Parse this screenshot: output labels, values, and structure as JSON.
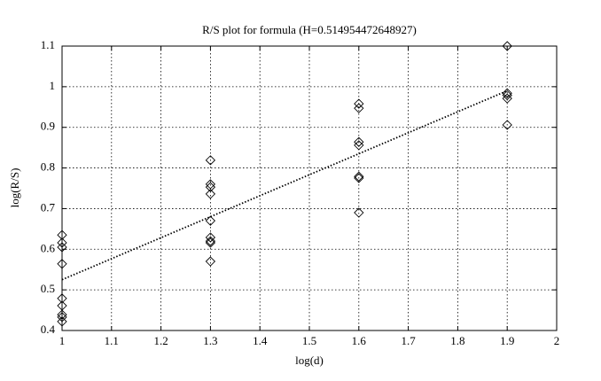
{
  "chart_data": {
    "type": "scatter",
    "title": "R/S plot for formula (H=0.514954472648927)",
    "xlabel": "log(d)",
    "ylabel": "log(R/S)",
    "xlim": [
      1,
      2
    ],
    "ylim": [
      0.4,
      1.1
    ],
    "xticks": [
      1,
      1.1,
      1.2,
      1.3,
      1.4,
      1.5,
      1.6,
      1.7,
      1.8,
      1.9,
      2
    ],
    "yticks": [
      0.4,
      0.5,
      0.6,
      0.7,
      0.8,
      0.9,
      1,
      1.1
    ],
    "grid": true,
    "series": [
      {
        "type": "scatter",
        "marker": "diamond",
        "color": "#000000",
        "x": [
          1,
          1,
          1,
          1,
          1,
          1,
          1,
          1,
          1,
          1.3,
          1.3,
          1.3,
          1.3,
          1.3,
          1.3,
          1.3,
          1.3,
          1.3,
          1.6,
          1.6,
          1.6,
          1.6,
          1.6,
          1.6,
          1.6,
          1.9,
          1.9,
          1.9,
          1.9,
          1.9
        ],
        "values": [
          0.635,
          0.616,
          0.605,
          0.564,
          0.479,
          0.461,
          0.439,
          0.433,
          0.422,
          0.819,
          0.76,
          0.753,
          0.736,
          0.67,
          0.629,
          0.62,
          0.616,
          0.57,
          0.958,
          0.947,
          0.864,
          0.856,
          0.779,
          0.775,
          0.69,
          1.1,
          0.984,
          0.979,
          0.971,
          0.906
        ]
      },
      {
        "type": "line",
        "linestyle": "dotted",
        "color": "#000000",
        "x": [
          1,
          1.9
        ],
        "values": [
          0.525,
          0.99
        ]
      }
    ]
  }
}
